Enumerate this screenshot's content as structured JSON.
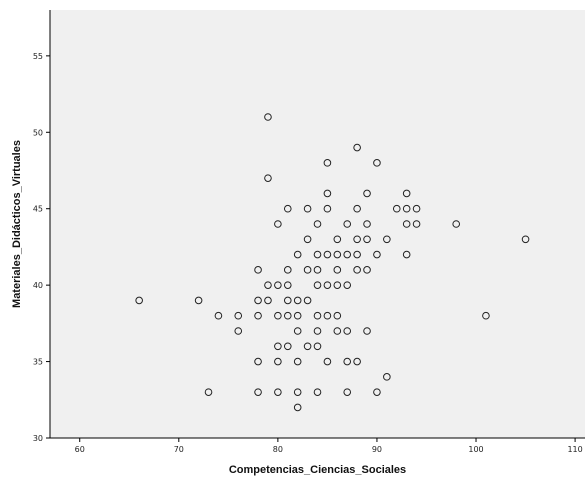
{
  "chart_data": {
    "type": "scatter",
    "title": "",
    "xlabel": "Competencias_Ciencias_Sociales",
    "ylabel": "Materiales_Didácticos_Virtuales",
    "xlim": [
      57,
      111
    ],
    "ylim": [
      30,
      58
    ],
    "xticks": [
      60,
      70,
      80,
      90,
      100,
      110
    ],
    "yticks": [
      30,
      35,
      40,
      45,
      50,
      55
    ],
    "x_tick_labels": [
      "60",
      "70",
      "80",
      "90",
      "100",
      "110"
    ],
    "y_tick_labels": [
      "30",
      "35",
      "40",
      "45",
      "50",
      "55"
    ],
    "grid": false,
    "legend": "none",
    "colors": {
      "plot_background": "#f0f0f0",
      "marker": "#222222",
      "axis": "#000000"
    },
    "points": [
      {
        "x": 79,
        "y": 51
      },
      {
        "x": 88,
        "y": 49
      },
      {
        "x": 85,
        "y": 48
      },
      {
        "x": 90,
        "y": 48
      },
      {
        "x": 79,
        "y": 47
      },
      {
        "x": 85,
        "y": 46
      },
      {
        "x": 89,
        "y": 46
      },
      {
        "x": 93,
        "y": 46
      },
      {
        "x": 81,
        "y": 45
      },
      {
        "x": 83,
        "y": 45
      },
      {
        "x": 85,
        "y": 45
      },
      {
        "x": 88,
        "y": 45
      },
      {
        "x": 92,
        "y": 45
      },
      {
        "x": 93,
        "y": 45
      },
      {
        "x": 94,
        "y": 45
      },
      {
        "x": 80,
        "y": 44
      },
      {
        "x": 84,
        "y": 44
      },
      {
        "x": 87,
        "y": 44
      },
      {
        "x": 89,
        "y": 44
      },
      {
        "x": 93,
        "y": 44
      },
      {
        "x": 94,
        "y": 44
      },
      {
        "x": 98,
        "y": 44
      },
      {
        "x": 83,
        "y": 43
      },
      {
        "x": 86,
        "y": 43
      },
      {
        "x": 88,
        "y": 43
      },
      {
        "x": 89,
        "y": 43
      },
      {
        "x": 91,
        "y": 43
      },
      {
        "x": 105,
        "y": 43
      },
      {
        "x": 82,
        "y": 42
      },
      {
        "x": 84,
        "y": 42
      },
      {
        "x": 85,
        "y": 42
      },
      {
        "x": 86,
        "y": 42
      },
      {
        "x": 87,
        "y": 42
      },
      {
        "x": 88,
        "y": 42
      },
      {
        "x": 90,
        "y": 42
      },
      {
        "x": 93,
        "y": 42
      },
      {
        "x": 78,
        "y": 41
      },
      {
        "x": 81,
        "y": 41
      },
      {
        "x": 83,
        "y": 41
      },
      {
        "x": 84,
        "y": 41
      },
      {
        "x": 86,
        "y": 41
      },
      {
        "x": 88,
        "y": 41
      },
      {
        "x": 89,
        "y": 41
      },
      {
        "x": 79,
        "y": 40
      },
      {
        "x": 80,
        "y": 40
      },
      {
        "x": 81,
        "y": 40
      },
      {
        "x": 84,
        "y": 40
      },
      {
        "x": 85,
        "y": 40
      },
      {
        "x": 86,
        "y": 40
      },
      {
        "x": 87,
        "y": 40
      },
      {
        "x": 66,
        "y": 39
      },
      {
        "x": 72,
        "y": 39
      },
      {
        "x": 78,
        "y": 39
      },
      {
        "x": 79,
        "y": 39
      },
      {
        "x": 81,
        "y": 39
      },
      {
        "x": 82,
        "y": 39
      },
      {
        "x": 83,
        "y": 39
      },
      {
        "x": 74,
        "y": 38
      },
      {
        "x": 76,
        "y": 38
      },
      {
        "x": 78,
        "y": 38
      },
      {
        "x": 80,
        "y": 38
      },
      {
        "x": 81,
        "y": 38
      },
      {
        "x": 82,
        "y": 38
      },
      {
        "x": 84,
        "y": 38
      },
      {
        "x": 85,
        "y": 38
      },
      {
        "x": 86,
        "y": 38
      },
      {
        "x": 101,
        "y": 38
      },
      {
        "x": 76,
        "y": 37
      },
      {
        "x": 82,
        "y": 37
      },
      {
        "x": 84,
        "y": 37
      },
      {
        "x": 86,
        "y": 37
      },
      {
        "x": 87,
        "y": 37
      },
      {
        "x": 89,
        "y": 37
      },
      {
        "x": 80,
        "y": 36
      },
      {
        "x": 81,
        "y": 36
      },
      {
        "x": 83,
        "y": 36
      },
      {
        "x": 84,
        "y": 36
      },
      {
        "x": 78,
        "y": 35
      },
      {
        "x": 80,
        "y": 35
      },
      {
        "x": 82,
        "y": 35
      },
      {
        "x": 85,
        "y": 35
      },
      {
        "x": 87,
        "y": 35
      },
      {
        "x": 88,
        "y": 35
      },
      {
        "x": 91,
        "y": 34
      },
      {
        "x": 73,
        "y": 33
      },
      {
        "x": 78,
        "y": 33
      },
      {
        "x": 80,
        "y": 33
      },
      {
        "x": 82,
        "y": 33
      },
      {
        "x": 84,
        "y": 33
      },
      {
        "x": 87,
        "y": 33
      },
      {
        "x": 90,
        "y": 33
      },
      {
        "x": 82,
        "y": 32
      }
    ]
  }
}
